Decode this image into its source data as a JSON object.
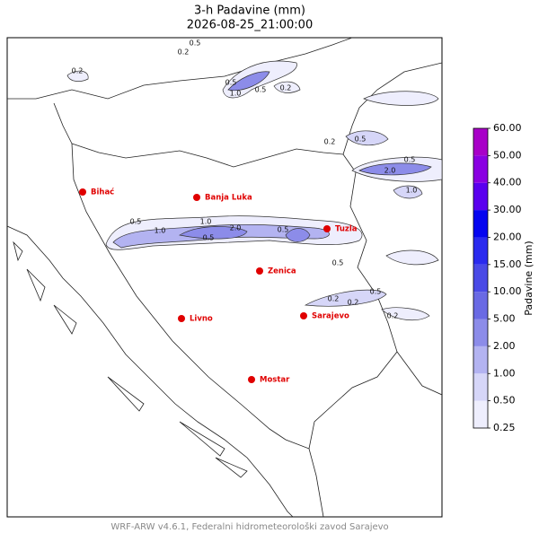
{
  "title": "3-h Padavine (mm)",
  "subtitle": "2026-08-25_21:00:00",
  "cities": [
    "Bihać",
    "Banja Luka",
    "Tuzla",
    "Zenica",
    "Livno",
    "Sarajevo",
    "Mostar"
  ],
  "contour_labels": [
    "0.2",
    "0.5",
    "0.2",
    "0.5",
    "1.0",
    "0.5",
    "0.2",
    "1.0",
    "2.0",
    "0.5",
    "0.5",
    "1.0",
    "0.5",
    "2.0",
    "0.5",
    "0.2",
    "0.5",
    "0.2",
    "0.5",
    "0.2",
    "1.0",
    "0.5",
    "0.2"
  ],
  "colorbar": {
    "label": "Padavine (mm)",
    "ticks": [
      "0.25",
      "0.50",
      "1.00",
      "2.00",
      "5.00",
      "10.00",
      "15.00",
      "20.00",
      "30.00",
      "40.00",
      "50.00",
      "60.00"
    ],
    "colors": [
      "#eeeefd",
      "#d6d6f8",
      "#b3b3f1",
      "#8c8ce9",
      "#6a6ae4",
      "#4a4ae6",
      "#2a2aee",
      "#0505f0",
      "#5a00ee",
      "#8a00e2",
      "#a800c8"
    ]
  },
  "footer": "WRF-ARW v4.6.1, Federalni hidrometeorološki zavod Sarajevo"
}
